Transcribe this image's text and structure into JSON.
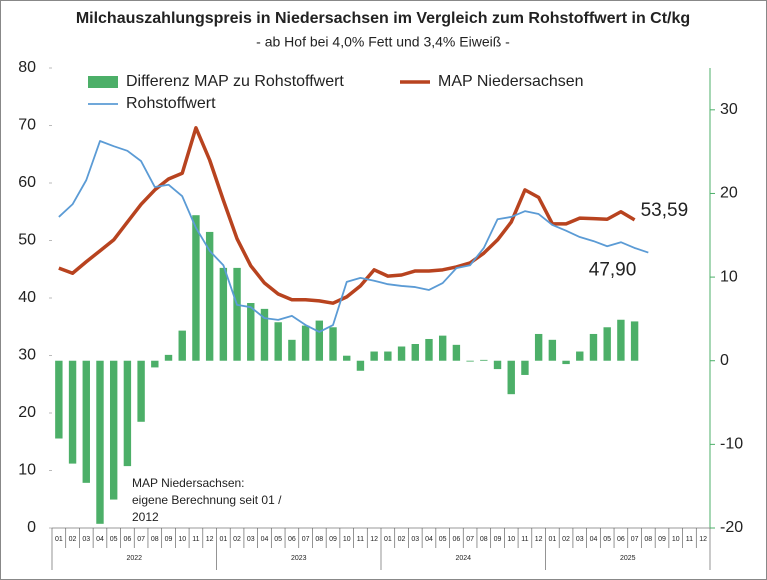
{
  "chart_data": {
    "type": "combo",
    "title": "Milchauszahlungspreis in Niedersachsen im Vergleich zum Rohstoffwert in Ct/kg",
    "subtitle": "- ab Hof bei 4,0% Fett und 3,4% Eiweiß -",
    "categories": [
      "01",
      "02",
      "03",
      "04",
      "05",
      "06",
      "07",
      "08",
      "09",
      "10",
      "11",
      "12",
      "01",
      "02",
      "03",
      "04",
      "05",
      "06",
      "07",
      "08",
      "09",
      "10",
      "11",
      "12",
      "01",
      "02",
      "03",
      "04",
      "05",
      "06",
      "07",
      "08",
      "09",
      "10",
      "11",
      "12",
      "01",
      "02",
      "03",
      "04",
      "05",
      "06",
      "07",
      "08",
      "09",
      "10",
      "11",
      "12"
    ],
    "years": [
      "2022",
      "2023",
      "2024",
      "2025"
    ],
    "ylim": [
      0,
      80
    ],
    "yticks": [
      0,
      10,
      20,
      30,
      40,
      50,
      60,
      70,
      80
    ],
    "y2lim": [
      -20,
      35
    ],
    "y2ticks": [
      -20,
      -10,
      0,
      10,
      20,
      30
    ],
    "legend": "top-left",
    "annotation": [
      "MAP Niedersachsen:",
      "eigene Berechnung seit 01 /",
      "2012"
    ],
    "series": [
      {
        "name": "Differenz MAP zu Rohstoffwert",
        "type": "bar",
        "axis": "y2",
        "color": "#4caf68",
        "values": [
          -9.3,
          -12.3,
          -14.6,
          -19.5,
          -16.6,
          -12.6,
          -7.3,
          -0.8,
          0.7,
          3.6,
          17.4,
          15.4,
          11.1,
          11.1,
          6.9,
          6.2,
          4.6,
          2.5,
          4.2,
          4.8,
          4.0,
          0.6,
          -1.2,
          1.1,
          1.1,
          1.7,
          2.0,
          2.6,
          3.0,
          1.9,
          -0.1,
          0.1,
          -1.0,
          -4.0,
          -1.7,
          3.2,
          2.5,
          -0.4,
          1.1,
          3.2,
          4.0,
          4.9,
          4.7,
          null,
          null,
          null,
          null,
          null
        ]
      },
      {
        "name": "MAP Niedersachsen",
        "type": "line",
        "color": "#b8431f",
        "values": [
          45.2,
          44.3,
          46.3,
          48.2,
          50.1,
          53.2,
          56.3,
          58.8,
          60.7,
          61.7,
          69.6,
          64.0,
          57.0,
          50.3,
          45.6,
          42.6,
          40.7,
          39.7,
          39.7,
          39.5,
          39.1,
          40.2,
          42.1,
          44.9,
          43.8,
          44.0,
          44.7,
          44.7,
          44.9,
          45.4,
          46.1,
          47.8,
          50.1,
          53.2,
          58.8,
          57.5,
          52.9,
          52.9,
          53.9,
          53.8,
          53.7,
          55.0,
          53.59,
          null,
          null,
          null,
          null,
          null
        ],
        "value_labels": [
          null,
          null,
          null,
          null,
          null,
          null,
          null,
          null,
          null,
          null,
          null,
          null,
          null,
          null,
          null,
          null,
          null,
          null,
          null,
          null,
          null,
          null,
          null,
          null,
          null,
          null,
          null,
          null,
          null,
          null,
          null,
          null,
          null,
          null,
          null,
          null,
          null,
          null,
          null,
          null,
          null,
          null,
          "53,59",
          null,
          null,
          null,
          null,
          null
        ]
      },
      {
        "name": "Rohstoffwert",
        "type": "line",
        "color": "#5b9bd5",
        "values": [
          54.1,
          56.3,
          60.5,
          67.3,
          66.4,
          65.6,
          63.8,
          59.3,
          59.7,
          57.7,
          52.2,
          48.2,
          45.7,
          38.8,
          38.4,
          36.5,
          36.2,
          36.9,
          35.3,
          34.1,
          35.3,
          42.8,
          43.5,
          43.0,
          42.4,
          42.1,
          41.9,
          41.4,
          42.6,
          45.2,
          45.7,
          48.7,
          53.7,
          54.1,
          55.1,
          54.6,
          52.7,
          51.7,
          50.6,
          49.9,
          49.0,
          49.7,
          48.7,
          47.9,
          null,
          null,
          null,
          null
        ],
        "value_labels": [
          null,
          null,
          null,
          null,
          null,
          null,
          null,
          null,
          null,
          null,
          null,
          null,
          null,
          null,
          null,
          null,
          null,
          null,
          null,
          null,
          null,
          null,
          null,
          null,
          null,
          null,
          null,
          null,
          null,
          null,
          null,
          null,
          null,
          null,
          null,
          null,
          null,
          null,
          null,
          null,
          null,
          null,
          null,
          "47,90",
          null,
          null,
          null,
          null
        ]
      }
    ]
  }
}
